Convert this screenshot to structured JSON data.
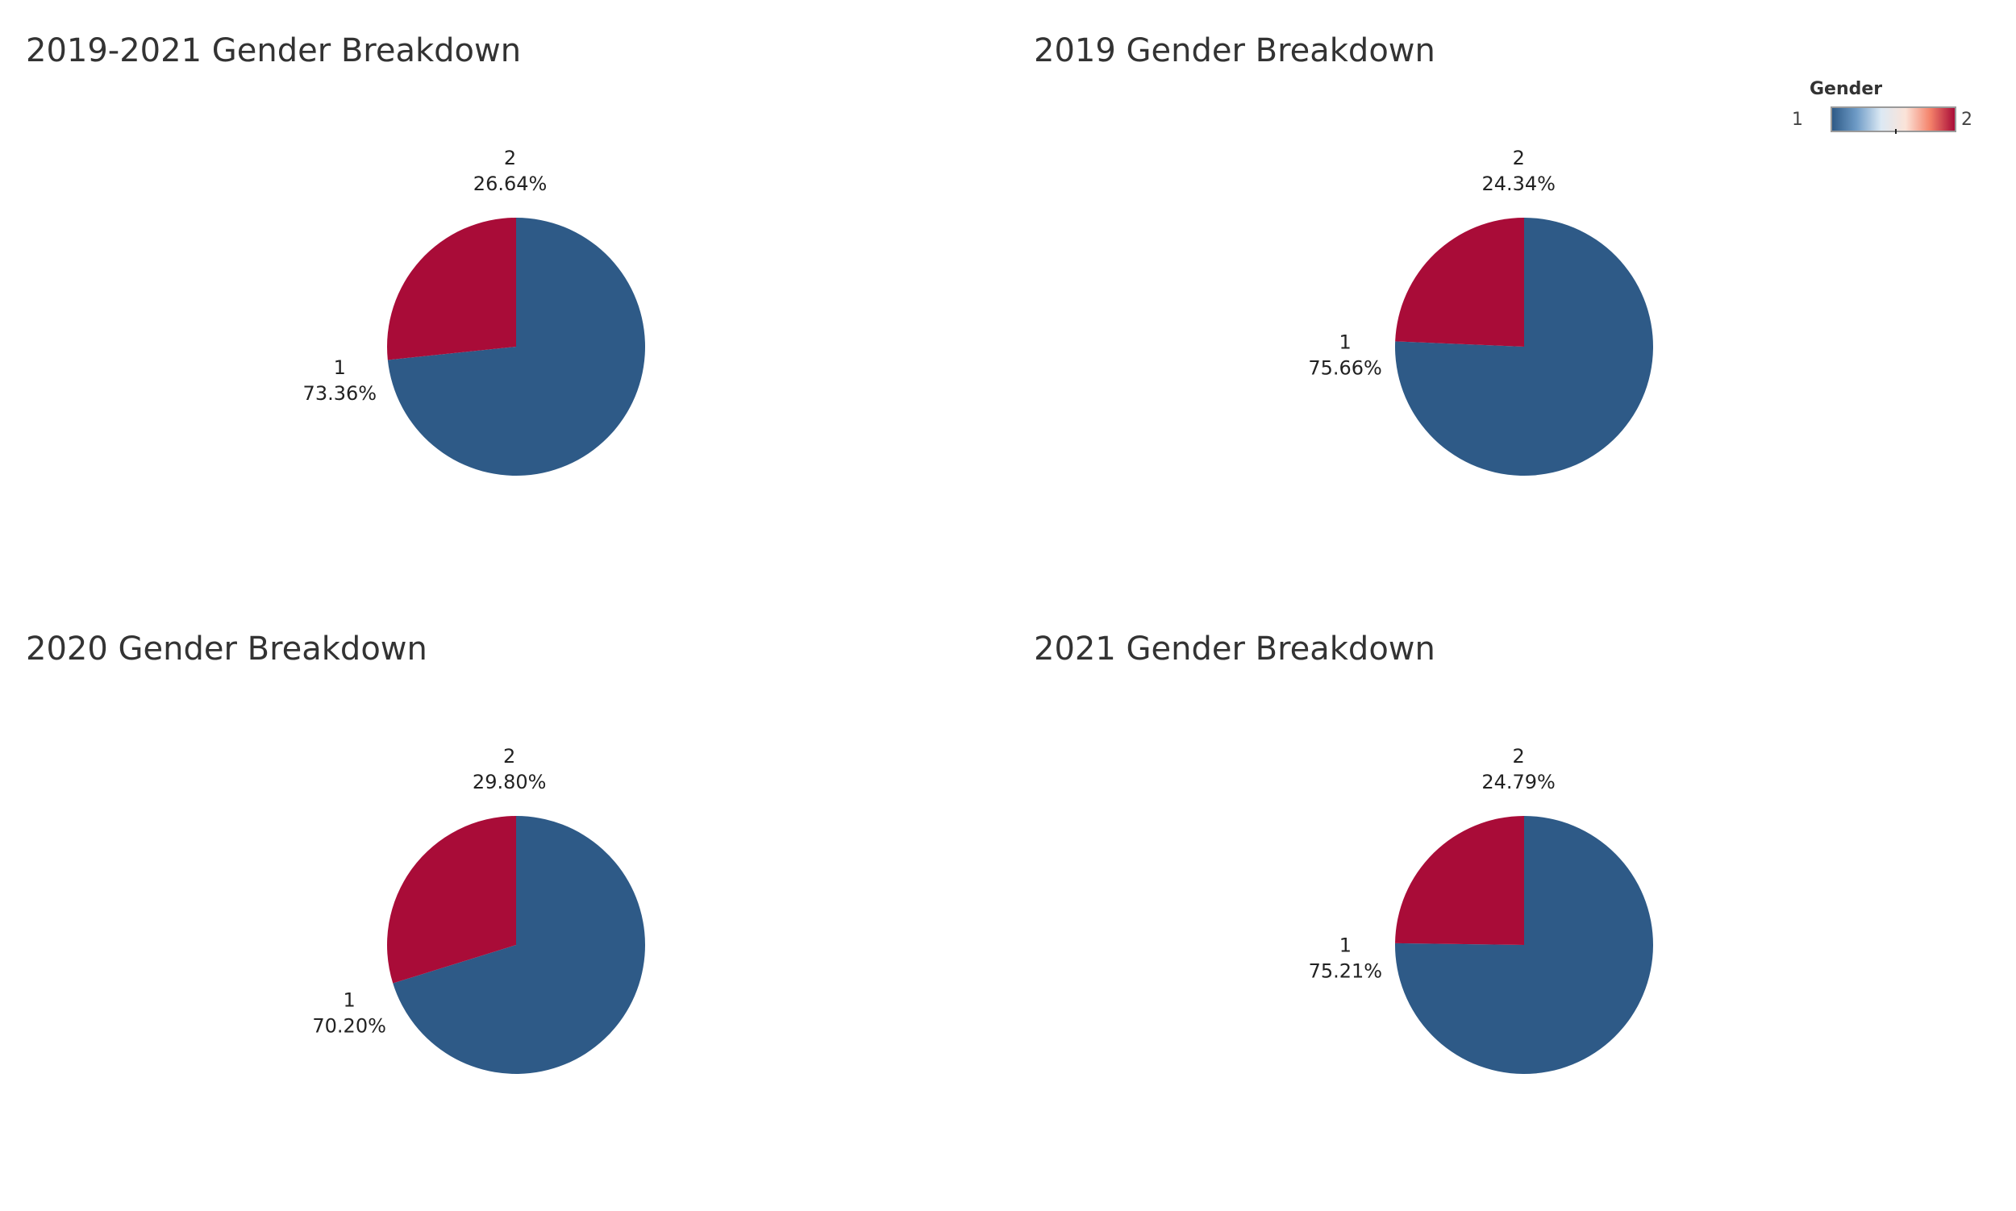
{
  "colors": {
    "gender_1": "#2e5a87",
    "gender_2": "#a90c38"
  },
  "legend": {
    "title": "Gender",
    "min_label": "1",
    "max_label": "2",
    "gradient": [
      "#2e5a87",
      "#6f9cc7",
      "#dce9f4",
      "#fbe3d8",
      "#f4826a",
      "#a90c38"
    ]
  },
  "chart_data": [
    {
      "type": "pie",
      "title": "2019-2021 Gender Breakdown",
      "categories": [
        "1",
        "2"
      ],
      "values": [
        73.36,
        26.64
      ],
      "labels": [
        "73.36%",
        "26.64%"
      ]
    },
    {
      "type": "pie",
      "title": "2019 Gender Breakdown",
      "categories": [
        "1",
        "2"
      ],
      "values": [
        75.66,
        24.34
      ],
      "labels": [
        "75.66%",
        "24.34%"
      ]
    },
    {
      "type": "pie",
      "title": "2020 Gender Breakdown",
      "categories": [
        "1",
        "2"
      ],
      "values": [
        70.2,
        29.8
      ],
      "labels": [
        "70.20%",
        "29.80%"
      ]
    },
    {
      "type": "pie",
      "title": "2021 Gender Breakdown",
      "categories": [
        "1",
        "2"
      ],
      "values": [
        75.21,
        24.79
      ],
      "labels": [
        "75.21%",
        "24.79%"
      ]
    }
  ]
}
